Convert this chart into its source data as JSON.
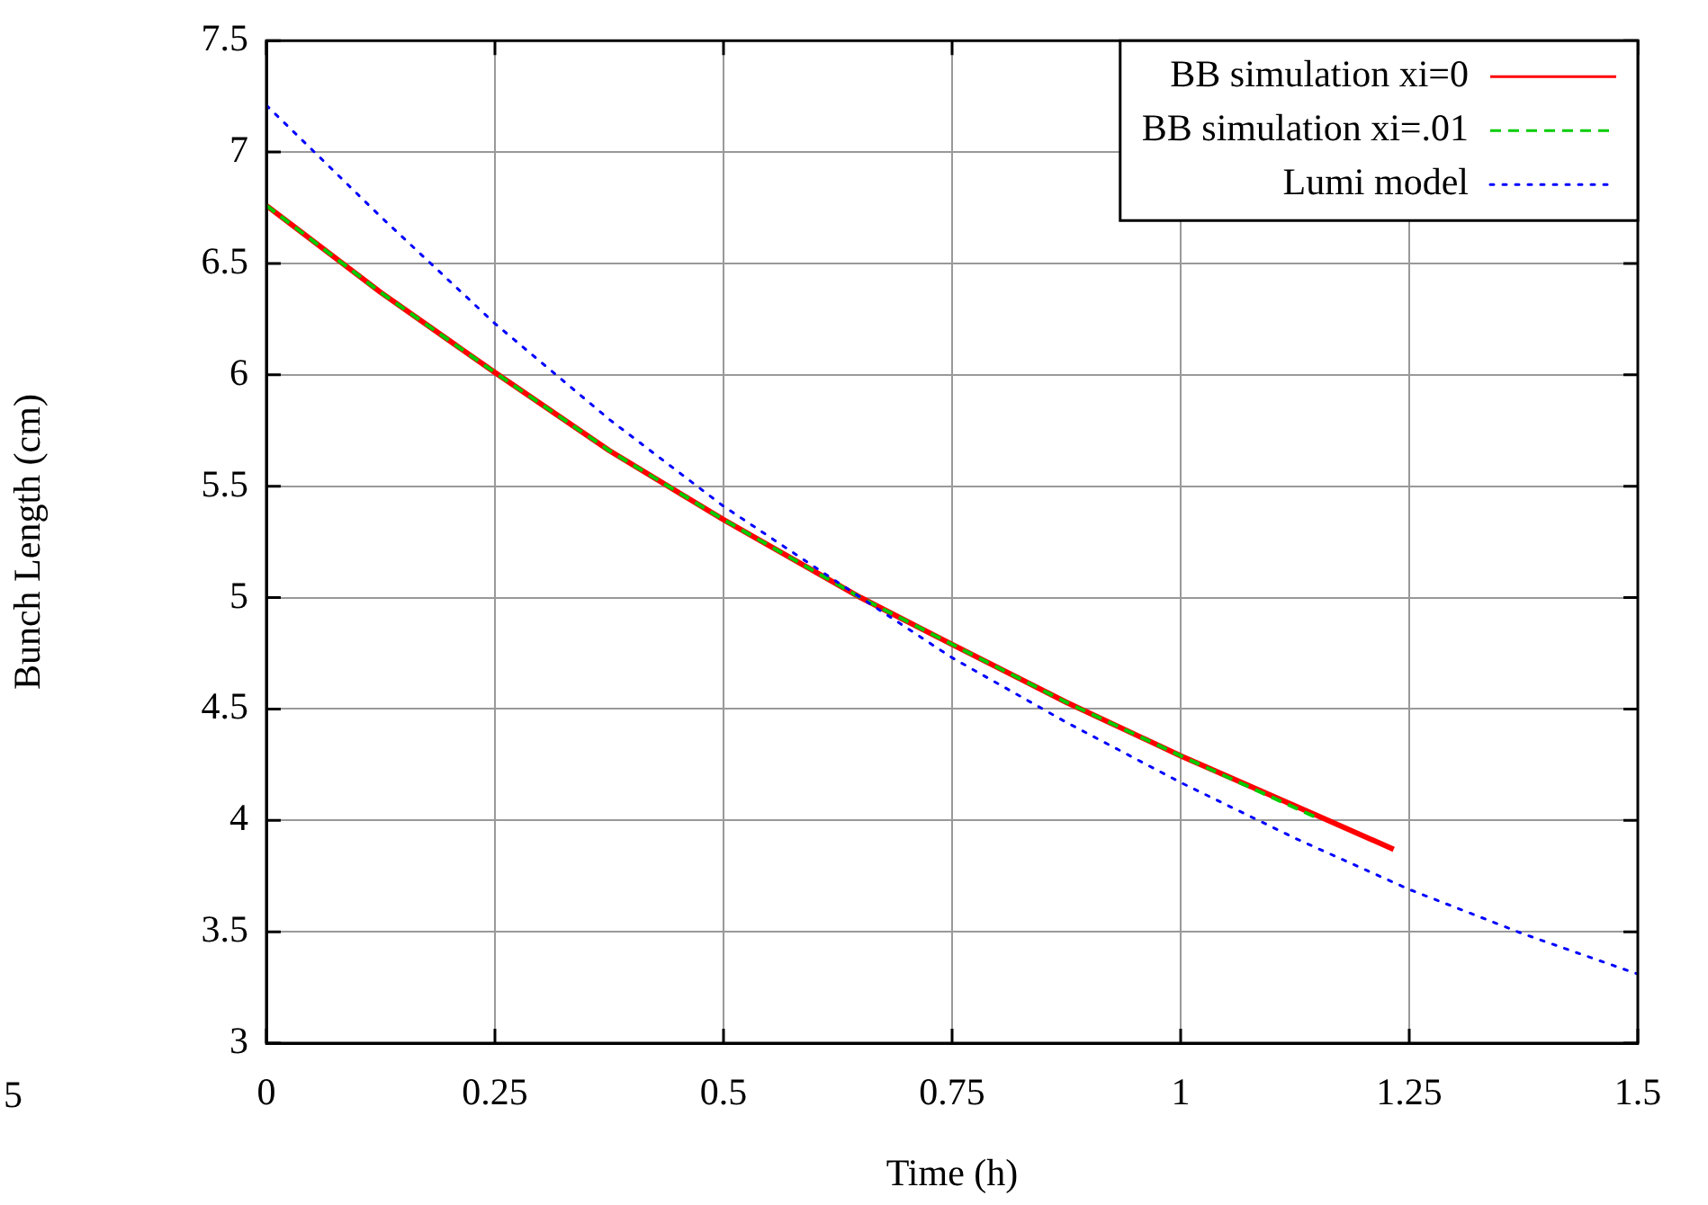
{
  "chart_data": {
    "type": "line",
    "xlabel": "Time (h)",
    "ylabel": "Bunch Length (cm)",
    "xlim": [
      0,
      1.5
    ],
    "xticks": [
      0,
      0.25,
      0.5,
      0.75,
      1,
      1.25,
      1.5
    ],
    "ylim": [
      3,
      7.5
    ],
    "yticks": [
      3,
      3.5,
      4,
      4.5,
      5,
      5.5,
      6,
      6.5,
      7,
      7.5
    ],
    "grid": true,
    "legend": "top right",
    "marker": "none",
    "annotations": [
      "5"
    ],
    "series": [
      {
        "name": "BB simulation xi=0",
        "color": "#ff0000",
        "line_style": "solid",
        "x": [
          0,
          0.125,
          0.25,
          0.375,
          0.5,
          0.65,
          0.75,
          0.875,
          1,
          1.15,
          1.233
        ],
        "values": [
          6.76,
          6.37,
          6.01,
          5.66,
          5.35,
          5.0,
          4.79,
          4.53,
          4.29,
          4.02,
          3.87
        ]
      },
      {
        "name": "BB simulation xi=.01",
        "color": "#00cc00",
        "line_style": "dashed",
        "x": [
          0,
          0.125,
          0.25,
          0.375,
          0.5,
          0.65,
          0.75,
          0.875,
          1,
          1.15
        ],
        "values": [
          6.76,
          6.37,
          6.01,
          5.66,
          5.35,
          5.0,
          4.79,
          4.53,
          4.29,
          4.01
        ]
      },
      {
        "name": "Lumi model",
        "color": "#0000ff",
        "line_style": "dotted",
        "x": [
          0,
          0.125,
          0.25,
          0.375,
          0.5,
          0.65,
          0.75,
          0.875,
          1,
          1.125,
          1.25,
          1.375,
          1.5
        ],
        "values": [
          7.21,
          6.71,
          6.23,
          5.8,
          5.41,
          5.0,
          4.73,
          4.44,
          4.17,
          3.92,
          3.69,
          3.49,
          3.31
        ]
      }
    ]
  }
}
